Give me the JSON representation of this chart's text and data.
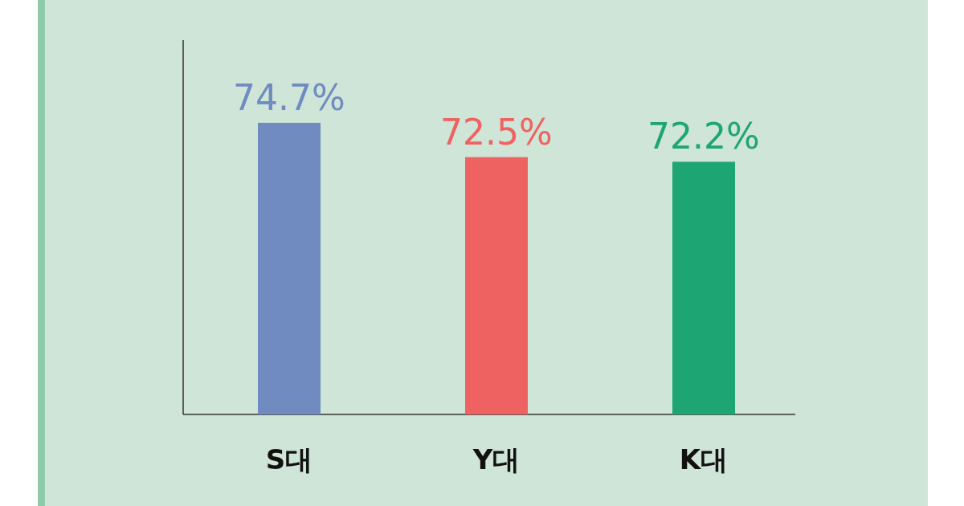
{
  "chart_data": {
    "type": "bar",
    "categories": [
      "S대",
      "Y대",
      "K대"
    ],
    "values": [
      74.7,
      72.5,
      72.2
    ],
    "colors": [
      "#6f8bc0",
      "#ee6361",
      "#1ea574"
    ],
    "value_labels": [
      "74.7%",
      "72.5%",
      "72.2%"
    ],
    "ylim": [
      56,
      80
    ]
  }
}
